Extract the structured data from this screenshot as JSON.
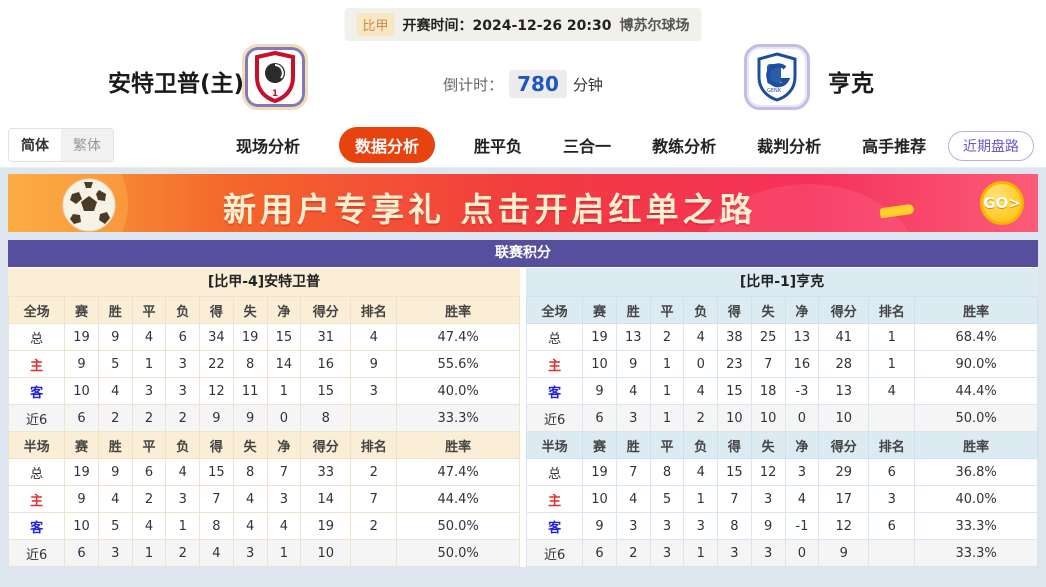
{
  "colors": {
    "accent_tab": "#e8430e",
    "title_bar": "#564f9e",
    "left_theme": "#faefd6",
    "right_theme": "#dceaf2",
    "countdown_blue": "#2056c0",
    "home_label_red": "#e03030",
    "away_label_blue": "#2222dd",
    "banner_go_yellow": "#ffc922"
  },
  "top_bar": {
    "league": "比甲",
    "kickoff_label": "开赛时间：",
    "kickoff_time": "2024-12-26 20:30",
    "venue": "博苏尔球场"
  },
  "match": {
    "home_name": "安特卫普(主)",
    "away_name": "亨克",
    "home_logo": "antwerp-crest",
    "away_logo": "genk-crest",
    "countdown_label": "倒计时：",
    "countdown_value": "780",
    "countdown_unit": "分钟"
  },
  "nav": {
    "lang_simplified": "简体",
    "lang_traditional": "繁体",
    "tabs": [
      {
        "label": "现场分析",
        "active": false
      },
      {
        "label": "数据分析",
        "active": true
      },
      {
        "label": "胜平负",
        "active": false
      },
      {
        "label": "三合一",
        "active": false
      },
      {
        "label": "教练分析",
        "active": false
      },
      {
        "label": "裁判分析",
        "active": false
      },
      {
        "label": "高手推荐",
        "active": false
      }
    ],
    "recent_button": "近期盘路"
  },
  "banner": {
    "text": "新用户专享礼  点击开启红单之路",
    "go_label": "GO>",
    "ball_icon": "soccer-ball"
  },
  "league_table": {
    "title": "联赛积分",
    "columns_full": [
      "全场",
      "赛",
      "胜",
      "平",
      "负",
      "得",
      "失",
      "净",
      "得分",
      "排名",
      "胜率"
    ],
    "columns_half": [
      "半场",
      "赛",
      "胜",
      "平",
      "负",
      "得",
      "失",
      "净",
      "得分",
      "排名",
      "胜率"
    ],
    "left": {
      "team_header": "[比甲-4]安特卫普",
      "full": [
        {
          "label": "总",
          "values": [
            "19",
            "9",
            "4",
            "6",
            "34",
            "19",
            "15",
            "31",
            "4",
            "47.4%"
          ]
        },
        {
          "label": "主",
          "values": [
            "9",
            "5",
            "1",
            "3",
            "22",
            "8",
            "14",
            "16",
            "9",
            "55.6%"
          ]
        },
        {
          "label": "客",
          "values": [
            "10",
            "4",
            "3",
            "3",
            "12",
            "11",
            "1",
            "15",
            "3",
            "40.0%"
          ]
        },
        {
          "label": "近6",
          "values": [
            "6",
            "2",
            "2",
            "2",
            "9",
            "9",
            "0",
            "8",
            "",
            "33.3%"
          ]
        }
      ],
      "half": [
        {
          "label": "总",
          "values": [
            "19",
            "9",
            "6",
            "4",
            "15",
            "8",
            "7",
            "33",
            "2",
            "47.4%"
          ]
        },
        {
          "label": "主",
          "values": [
            "9",
            "4",
            "2",
            "3",
            "7",
            "4",
            "3",
            "14",
            "7",
            "44.4%"
          ]
        },
        {
          "label": "客",
          "values": [
            "10",
            "5",
            "4",
            "1",
            "8",
            "4",
            "4",
            "19",
            "2",
            "50.0%"
          ]
        },
        {
          "label": "近6",
          "values": [
            "6",
            "3",
            "1",
            "2",
            "4",
            "3",
            "1",
            "10",
            "",
            "50.0%"
          ]
        }
      ]
    },
    "right": {
      "team_header": "[比甲-1]亨克",
      "full": [
        {
          "label": "总",
          "values": [
            "19",
            "13",
            "2",
            "4",
            "38",
            "25",
            "13",
            "41",
            "1",
            "68.4%"
          ]
        },
        {
          "label": "主",
          "values": [
            "10",
            "9",
            "1",
            "0",
            "23",
            "7",
            "16",
            "28",
            "1",
            "90.0%"
          ]
        },
        {
          "label": "客",
          "values": [
            "9",
            "4",
            "1",
            "4",
            "15",
            "18",
            "-3",
            "13",
            "4",
            "44.4%"
          ]
        },
        {
          "label": "近6",
          "values": [
            "6",
            "3",
            "1",
            "2",
            "10",
            "10",
            "0",
            "10",
            "",
            "50.0%"
          ]
        }
      ],
      "half": [
        {
          "label": "总",
          "values": [
            "19",
            "7",
            "8",
            "4",
            "15",
            "12",
            "3",
            "29",
            "6",
            "36.8%"
          ]
        },
        {
          "label": "主",
          "values": [
            "10",
            "4",
            "5",
            "1",
            "7",
            "3",
            "4",
            "17",
            "3",
            "40.0%"
          ]
        },
        {
          "label": "客",
          "values": [
            "9",
            "3",
            "3",
            "3",
            "8",
            "9",
            "-1",
            "12",
            "6",
            "33.3%"
          ]
        },
        {
          "label": "近6",
          "values": [
            "6",
            "2",
            "3",
            "1",
            "3",
            "3",
            "0",
            "9",
            "",
            "33.3%"
          ]
        }
      ]
    }
  }
}
